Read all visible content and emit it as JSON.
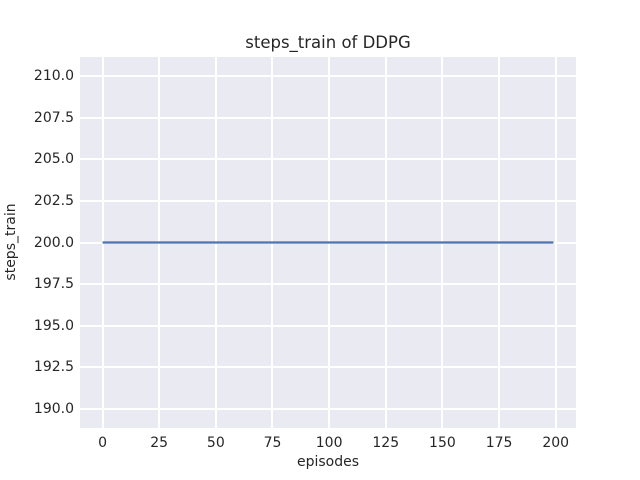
{
  "chart_data": {
    "type": "line",
    "title": "steps_train of DDPG",
    "xlabel": "episodes",
    "ylabel": "steps_train",
    "x_range": [
      -9.95,
      208.95
    ],
    "y_range": [
      188.85,
      211.15
    ],
    "xticks": [
      0,
      25,
      50,
      75,
      100,
      125,
      150,
      175,
      200
    ],
    "yticks": [
      "190.0",
      "192.5",
      "195.0",
      "197.5",
      "200.0",
      "202.5",
      "205.0",
      "207.5",
      "210.0"
    ],
    "grid": true,
    "legend": false,
    "plot_bg": "#eaeaf2",
    "grid_color": "#ffffff",
    "text_color": "#262626",
    "figure_bg": "#ffffff",
    "series": [
      {
        "name": "steps_train",
        "color": "#4c72b0",
        "x": [
          0,
          199
        ],
        "y": [
          200,
          200
        ]
      }
    ]
  }
}
